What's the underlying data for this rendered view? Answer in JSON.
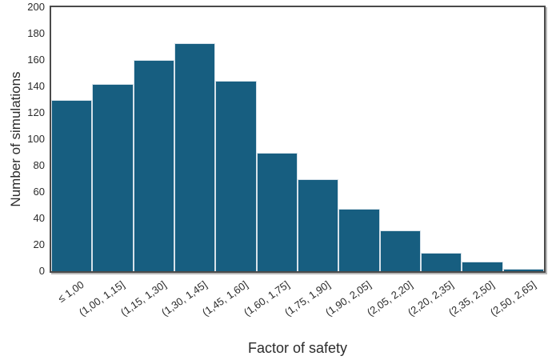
{
  "chart_data": {
    "type": "bar",
    "subtype": "histogram",
    "title": "",
    "xlabel": "Factor of safety",
    "ylabel": "Number of simulations",
    "categories": [
      "≤ 1,00",
      "(1,00, 1,15]",
      "(1,15, 1,30]",
      "(1,30, 1,45]",
      "(1,45, 1,60]",
      "(1,60, 1,75]",
      "(1,75, 1,90]",
      "(1,90, 2,05]",
      "(2,05, 2,20]",
      "(2,20, 2,35]",
      "(2,35, 2,50]",
      "(2,50, 2,65]"
    ],
    "values": [
      130,
      142,
      160,
      173,
      144,
      90,
      70,
      47,
      31,
      14,
      7,
      2
    ],
    "ylim": [
      0,
      200
    ],
    "yticks": [
      0,
      20,
      40,
      60,
      80,
      100,
      120,
      140,
      160,
      180,
      200
    ],
    "grid": false,
    "legend": false,
    "x_tick_rotation_deg": 35,
    "colors": {
      "bar_fill": "#175e80",
      "bar_edge": "#d6e2ea",
      "axis_line": "#4a4a4a",
      "text": "#2b2b2b",
      "background": "#ffffff"
    }
  }
}
